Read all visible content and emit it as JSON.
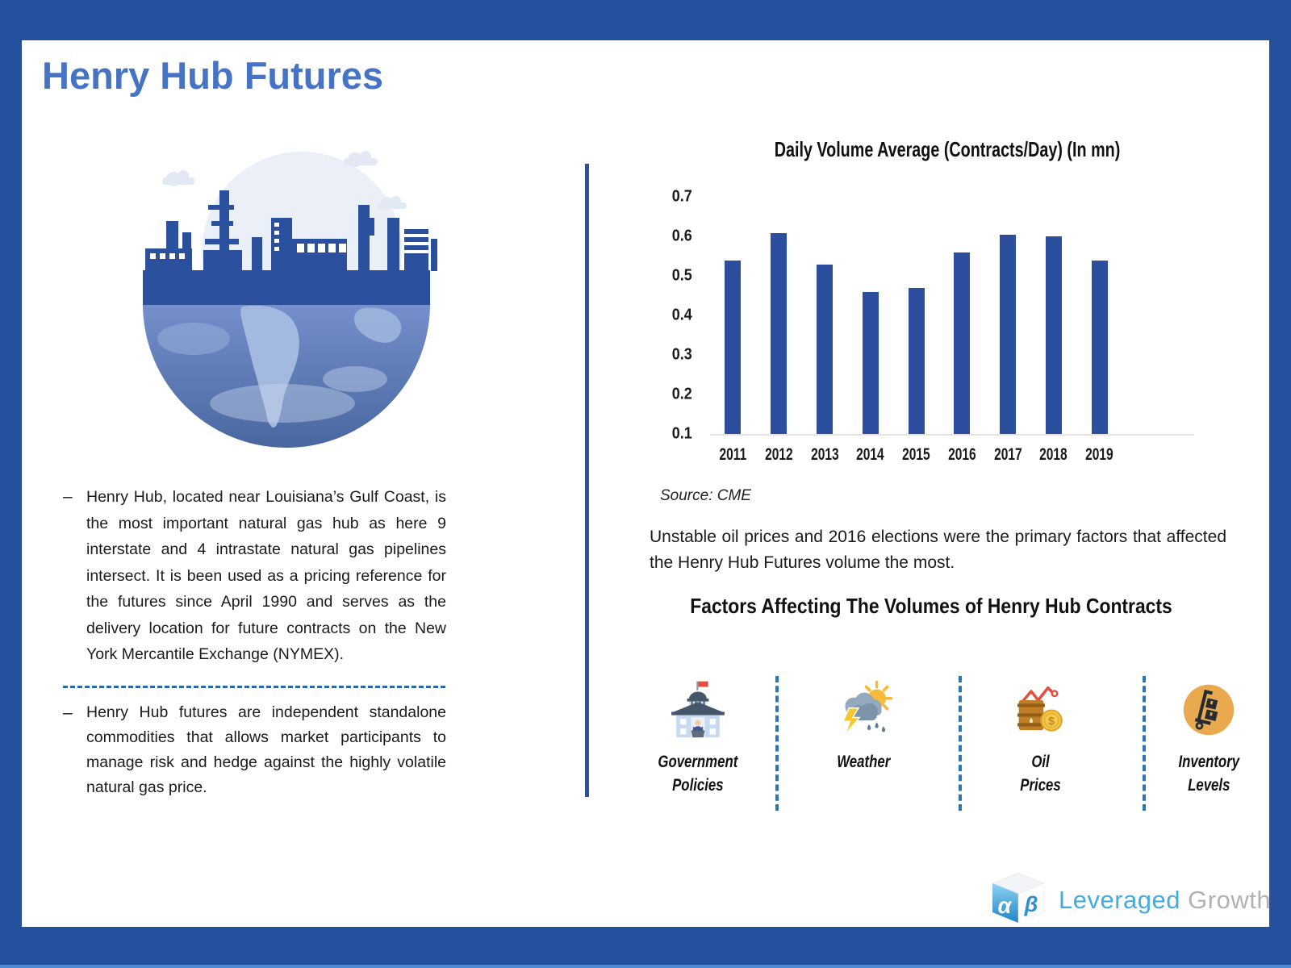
{
  "header": {
    "title": "Henry Hub Futures"
  },
  "colors": {
    "frame_blue": "#24509E",
    "title_blue": "#4573C5",
    "bar_blue": "#2B4F9E",
    "dashed_blue": "#2E75B6",
    "brand_blue": "#45AADF",
    "brand_gray": "#AFB2B9"
  },
  "left": {
    "illustration": "industry-globe-illustration",
    "bullet_marker": "–",
    "bullets": [
      "Henry Hub, located near Louisiana’s Gulf Coast, is the most important natural gas hub as here 9 interstate and 4 intrastate natural gas pipelines intersect.  It is been used as a pricing reference for the futures since April 1990 and serves as the delivery location for future contracts on the New York Mercantile Exchange (NYMEX).",
      "Henry Hub futures are independent standalone commodities that allows market participants to manage risk and hedge against the highly volatile natural gas price."
    ]
  },
  "chart_data": {
    "type": "bar",
    "title": "Daily Volume Average (Contracts/Day) (In mn)",
    "categories": [
      "2011",
      "2012",
      "2013",
      "2014",
      "2015",
      "2016",
      "2017",
      "2018",
      "2019"
    ],
    "values": [
      0.54,
      0.61,
      0.53,
      0.46,
      0.47,
      0.56,
      0.605,
      0.6,
      0.54
    ],
    "xlabel": "",
    "ylabel": "",
    "ylim": [
      0.1,
      0.75
    ],
    "ytick_labels": [
      "0.7",
      "0.6",
      "0.5",
      "0.4",
      "0.3",
      "0.2",
      "0.1"
    ],
    "grid": false,
    "legend": false,
    "bar_color": "#2B4F9E",
    "source": "Source: CME"
  },
  "right": {
    "note": "Unstable oil prices and 2016 elections were the primary factors that affected the Henry Hub Futures volume the most.",
    "factors_heading": "Factors Affecting The Volumes of Henry Hub Contracts",
    "factors": [
      {
        "icon": "government-building-icon",
        "lines": [
          "Government",
          "Policies"
        ]
      },
      {
        "icon": "storm-cloud-sun-icon",
        "lines": [
          "Weather"
        ]
      },
      {
        "icon": "oil-barrel-price-icon",
        "lines": [
          "Oil",
          "Prices"
        ],
        "coin_symbol": "$"
      },
      {
        "icon": "hand-truck-icon",
        "lines": [
          "Inventory",
          "Levels"
        ]
      }
    ]
  },
  "footer": {
    "logo_alpha": "α",
    "logo_beta": "β",
    "brand_first": "Leveraged",
    "brand_second": "Growth"
  }
}
